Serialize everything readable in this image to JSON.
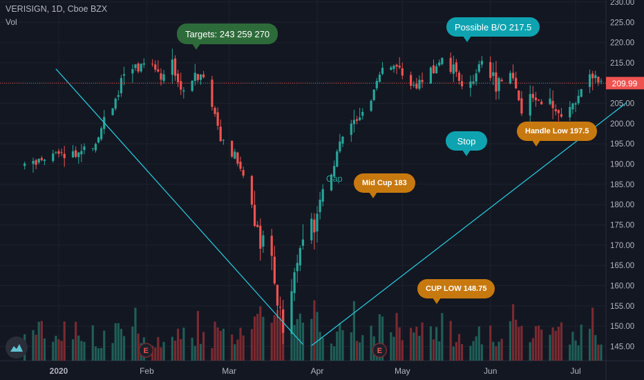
{
  "header": {
    "symbol_line": "VERISIGN, 1D, Cboe BZX",
    "vol_label": "Vol"
  },
  "last_price": {
    "value": "209.99",
    "color": "#ef5350"
  },
  "colors": {
    "up": "#26a69a",
    "down": "#ef5350",
    "background": "#131722",
    "trendline": "#26c6da"
  },
  "annotations": [
    {
      "id": "targets",
      "text": "Targets: 243 259 270",
      "color": "#2e6b3a"
    },
    {
      "id": "breakout",
      "text": "Possible B/O 217.5",
      "color": "#0fa3b1"
    },
    {
      "id": "stop",
      "text": "Stop",
      "color": "#0fa3b1"
    },
    {
      "id": "handle-low",
      "text": "Handle Low 197.5",
      "color": "#c7790f"
    },
    {
      "id": "mid-cup",
      "text": "Mid Cup  183",
      "color": "#c7790f"
    },
    {
      "id": "cup-low",
      "text": "CUP LOW 148.75",
      "color": "#c7790f"
    },
    {
      "id": "gap",
      "text": "Gap",
      "color": "#26a69a"
    }
  ],
  "earnings_markers": [
    "E",
    "E"
  ],
  "chart_data": {
    "type": "candlestick",
    "title": "VERISIGN, 1D, Cboe BZX",
    "x_tick_labels": [
      "2020",
      "Feb",
      "Mar",
      "Apr",
      "May",
      "Jun",
      "Jul"
    ],
    "y_tick_labels": [
      "145.00",
      "150.00",
      "155.00",
      "160.00",
      "165.00",
      "170.00",
      "175.00",
      "180.00",
      "185.00",
      "190.00",
      "195.00",
      "200.00",
      "205.00",
      "210.00",
      "215.00",
      "220.00",
      "225.00",
      "230.00"
    ],
    "ylim": [
      141.5,
      230.5
    ],
    "grid": true,
    "price_path": [
      [
        "2019-12-20",
        190
      ],
      [
        "2019-12-27",
        191
      ],
      [
        "2020-01-02",
        193
      ],
      [
        "2020-01-07",
        192
      ],
      [
        "2020-01-10",
        194
      ],
      [
        "2020-01-14",
        195
      ],
      [
        "2020-01-17",
        201
      ],
      [
        "2020-01-21",
        206
      ],
      [
        "2020-01-24",
        212
      ],
      [
        "2020-01-29",
        214
      ],
      [
        "2020-02-03",
        215
      ],
      [
        "2020-02-06",
        212
      ],
      [
        "2020-02-10",
        214
      ],
      [
        "2020-02-14",
        208
      ],
      [
        "2020-02-18",
        211
      ],
      [
        "2020-02-21",
        212
      ],
      [
        "2020-02-25",
        203
      ],
      [
        "2020-02-28",
        195
      ],
      [
        "2020-03-04",
        191
      ],
      [
        "2020-03-09",
        180
      ],
      [
        "2020-03-12",
        172
      ],
      [
        "2020-03-16",
        165
      ],
      [
        "2020-03-18",
        155
      ],
      [
        "2020-03-20",
        150
      ],
      [
        "2020-03-23",
        160
      ],
      [
        "2020-03-26",
        168
      ],
      [
        "2020-03-30",
        175
      ],
      [
        "2020-04-03",
        182
      ],
      [
        "2020-04-07",
        190
      ],
      [
        "2020-04-09",
        196
      ],
      [
        "2020-04-14",
        200
      ],
      [
        "2020-04-20",
        207
      ],
      [
        "2020-04-24",
        214
      ],
      [
        "2020-04-29",
        213
      ],
      [
        "2020-05-05",
        209
      ],
      [
        "2020-05-11",
        212
      ],
      [
        "2020-05-15",
        216
      ],
      [
        "2020-05-20",
        212
      ],
      [
        "2020-05-26",
        210
      ],
      [
        "2020-05-29",
        216
      ],
      [
        "2020-06-03",
        210
      ],
      [
        "2020-06-08",
        212
      ],
      [
        "2020-06-12",
        203
      ],
      [
        "2020-06-17",
        207
      ],
      [
        "2020-06-22",
        205
      ],
      [
        "2020-06-26",
        201
      ],
      [
        "2020-06-30",
        205
      ],
      [
        "2020-07-06",
        213
      ],
      [
        "2020-07-10",
        210
      ]
    ],
    "key_levels": {
      "targets": [
        243,
        259,
        270
      ],
      "possible_breakout": 217.5,
      "handle_low": 197.5,
      "mid_cup": 183,
      "cup_low": 148.75,
      "last": 209.99
    }
  }
}
